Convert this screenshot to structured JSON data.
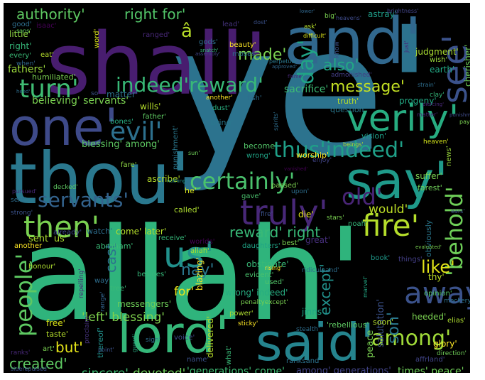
{
  "title": "",
  "background_color": "#000000",
  "frame_color": "#ffffff",
  "palette": "viridis",
  "words": [
    {
      "id": "w-ye",
      "text": "ye'",
      "color": "#2c738e"
    },
    {
      "id": "w-allah",
      "text": "allah'",
      "color": "#2fb47c"
    },
    {
      "id": "w-shall",
      "text": "shall'",
      "color": "#481d6f"
    },
    {
      "id": "w-and",
      "text": "and'",
      "color": "#31688e"
    },
    {
      "id": "w-thou",
      "text": "thou'",
      "color": "#2a788e"
    },
    {
      "id": "w-one",
      "text": "one'",
      "color": "#3e4a89"
    },
    {
      "id": "w-lord",
      "text": "lord'",
      "color": "#35b779"
    },
    {
      "id": "w-said",
      "text": "said'",
      "color": "#25848e"
    },
    {
      "id": "w-say",
      "text": "say'",
      "color": "#1f9a8a"
    },
    {
      "id": "w-verily",
      "text": "verily'",
      "color": "#27ad81"
    },
    {
      "id": "w-see",
      "text": "see'",
      "color": "#3b528b"
    },
    {
      "id": "w-truly",
      "text": "truly'",
      "color": "#482878"
    },
    {
      "id": "w-behold",
      "text": "'behold'",
      "color": "#6ece58"
    },
    {
      "id": "w-people",
      "text": "people'",
      "color": "#5ec962"
    },
    {
      "id": "w-us",
      "text": "us'",
      "color": "#21918c"
    },
    {
      "id": "w-turn",
      "text": "turn'",
      "color": "#3fbc73"
    },
    {
      "id": "w-evil",
      "text": "evil'",
      "color": "#2d708e"
    },
    {
      "id": "w-servants",
      "text": "servants'",
      "color": "#33638d"
    },
    {
      "id": "w-then",
      "text": "then'",
      "color": "#7ad151"
    },
    {
      "id": "w-fire",
      "text": "fire'",
      "color": "#b5de2b"
    },
    {
      "id": "w-away",
      "text": "away'",
      "color": "#3b528b"
    },
    {
      "id": "w-among-big",
      "text": "among'",
      "color": "#a0da39"
    },
    {
      "id": "w-old",
      "text": "old'",
      "color": "#482475"
    },
    {
      "id": "w-certainly",
      "text": "certainly'",
      "color": "#4ac16d"
    },
    {
      "id": "w-thus-indeed",
      "text": "thus'indeed'",
      "color": "#1fa088"
    },
    {
      "id": "w-day",
      "text": "day'",
      "color": "#20a486"
    },
    {
      "id": "w-indeed-reward",
      "text": "indeed'reward'",
      "color": "#38b977"
    },
    {
      "id": "w-authority",
      "text": "authority'",
      "color": "#5ec962"
    },
    {
      "id": "w-right-for",
      "text": "right for'",
      "color": "#52c569"
    },
    {
      "id": "w-a-circ",
      "text": "â",
      "color": "#b8de29"
    },
    {
      "id": "w-made",
      "text": "made'",
      "color": "#7ad151"
    },
    {
      "id": "w-also",
      "text": "also'",
      "color": "#22a785"
    },
    {
      "id": "w-message",
      "text": "message'",
      "color": "#c2df23"
    },
    {
      "id": "w-created",
      "text": "created'",
      "color": "#5ec962"
    },
    {
      "id": "w-sincere",
      "text": "sincere'",
      "color": "#3dbc74"
    },
    {
      "id": "w-devoted",
      "text": "devoted'",
      "color": "#6ccd5a"
    },
    {
      "id": "w-generations-come",
      "text": "'generations' come'",
      "color": "#3dbc74"
    },
    {
      "id": "w-among-generations",
      "text": "among' generations'",
      "color": "#414487"
    },
    {
      "id": "w-times-peace",
      "text": "times' peace'",
      "color": "#6ece58"
    },
    {
      "id": "w-but",
      "text": "but'",
      "color": "#e5e419"
    },
    {
      "id": "w-son",
      "text": "son'",
      "color": "#2a788e"
    },
    {
      "id": "w-like",
      "text": "like'",
      "color": "#e2e418"
    },
    {
      "id": "w-nay",
      "text": "nay'",
      "color": "#2a788e"
    },
    {
      "id": "w-reward-right",
      "text": "reward' right",
      "color": "#38b977"
    },
    {
      "id": "w-would",
      "text": "would'",
      "color": "#bddf26"
    },
    {
      "id": "w-cast",
      "text": "cast",
      "color": "#2c728e"
    },
    {
      "id": "w-except",
      "text": "except'",
      "color": "#21918c"
    },
    {
      "id": "w-left-blessing",
      "text": "'left' blessing'",
      "color": "#7fd34e"
    },
    {
      "id": "w-for",
      "text": "for'",
      "color": "#eae51a"
    },
    {
      "id": "w-sent-us",
      "text": "sent' us'",
      "color": "#addc30"
    },
    {
      "id": "w-blessing-among",
      "text": "blessing' among'",
      "color": "#5ec962"
    },
    {
      "id": "w-believing-servants",
      "text": "believing' servants'",
      "color": "#7ad151"
    },
    {
      "id": "w-fathers",
      "text": "fathers'",
      "color": "#9bd93c"
    },
    {
      "id": "w-little",
      "text": "little'",
      "color": "#90d743"
    },
    {
      "id": "w-right",
      "text": "right'",
      "color": "#35b779"
    },
    {
      "id": "w-every",
      "text": "every'",
      "color": "#3aba76"
    },
    {
      "id": "w-good",
      "text": "good'",
      "color": "#2e6e8e"
    },
    {
      "id": "w-isaac",
      "text": "isaac'",
      "color": "#440154"
    },
    {
      "id": "w-word",
      "text": "word'",
      "color": "#d8e219"
    },
    {
      "id": "w-ranged",
      "text": "ranged'",
      "color": "#482878"
    },
    {
      "id": "w-gods",
      "text": "gods'",
      "color": "#2e6f8e"
    },
    {
      "id": "w-beauty",
      "text": "beauty'",
      "color": "#fde725"
    },
    {
      "id": "w-moses",
      "text": "moses'",
      "color": "#2c728e"
    },
    {
      "id": "w-lead",
      "text": "lead'",
      "color": "#46337e"
    },
    {
      "id": "w-dost",
      "text": "dost'",
      "color": "#3b528b"
    },
    {
      "id": "w-ask",
      "text": "ask'",
      "color": "#b5de2b"
    },
    {
      "id": "w-big",
      "text": "big'",
      "color": "#7ad151"
    },
    {
      "id": "w-astray",
      "text": "astray'",
      "color": "#1f9e89"
    },
    {
      "id": "w-heavens",
      "text": "heavens'",
      "color": "#3e4a89"
    },
    {
      "id": "w-lower",
      "text": "lower'",
      "color": "#31688e"
    },
    {
      "id": "w-brightness",
      "text": "brightness'",
      "color": "#414487"
    },
    {
      "id": "w-cherisher",
      "text": "cherisher'",
      "color": "#6ece58"
    },
    {
      "id": "w-judgment",
      "text": "judgment'",
      "color": "#aadc32"
    },
    {
      "id": "w-admonished",
      "text": "admonished'",
      "color": "#433e85"
    },
    {
      "id": "w-earth",
      "text": "earth'",
      "color": "#22a884"
    },
    {
      "id": "w-sacrifice",
      "text": "sacrifice'",
      "color": "#3dbc74"
    },
    {
      "id": "w-truth",
      "text": "truth'",
      "color": "#b8de29"
    },
    {
      "id": "w-question",
      "text": "question'",
      "color": "#2a788e"
    },
    {
      "id": "w-progeny",
      "text": "progeny'",
      "color": "#22a884"
    },
    {
      "id": "w-worship",
      "text": "worship'",
      "color": "#fde725"
    },
    {
      "id": "w-matter",
      "text": "matter'",
      "color": "#2c728e"
    },
    {
      "id": "w-so",
      "text": "so'",
      "color": "#3b528b"
    },
    {
      "id": "w-another-1",
      "text": "another'",
      "color": "#fde725"
    },
    {
      "id": "w-fish",
      "text": "fish'",
      "color": "#2e6e8e"
    },
    {
      "id": "w-dust",
      "text": "dust'",
      "color": "#29af7f"
    },
    {
      "id": "w-wills",
      "text": "wills'",
      "color": "#b5de2b"
    },
    {
      "id": "w-father",
      "text": "father'",
      "color": "#5ec962"
    },
    {
      "id": "w-bones",
      "text": "bones'",
      "color": "#27ad81"
    },
    {
      "id": "w-bring",
      "text": "bring'",
      "color": "#2a788e"
    },
    {
      "id": "w-fare",
      "text": "fare'",
      "color": "#8fd744"
    },
    {
      "id": "w-become",
      "text": "become'",
      "color": "#52c569"
    },
    {
      "id": "w-wrong-1",
      "text": "wrong'",
      "color": "#20a486"
    },
    {
      "id": "w-passed",
      "text": "passed'",
      "color": "#7ad151"
    },
    {
      "id": "w-upon",
      "text": "upon'",
      "color": "#2e6e8e"
    },
    {
      "id": "w-gave",
      "text": "gave'",
      "color": "#4ac16d"
    },
    {
      "id": "w-enjoy",
      "text": "enjoy'",
      "color": "#414487"
    },
    {
      "id": "w-vision",
      "text": "vision'",
      "color": "#1fa088"
    },
    {
      "id": "w-heaven",
      "text": "heaven'",
      "color": "#d2e21b"
    },
    {
      "id": "w-news",
      "text": "news'",
      "color": "#9bd93c"
    },
    {
      "id": "w-suffer",
      "text": "suffer'",
      "color": "#7ad151"
    },
    {
      "id": "w-farest",
      "text": "farest'",
      "color": "#6ece58"
    },
    {
      "id": "w-ascribe",
      "text": "ascribe'",
      "color": "#b5de2b"
    },
    {
      "id": "w-he",
      "text": "he'",
      "color": "#d8e219"
    },
    {
      "id": "w-called",
      "text": "called'",
      "color": "#addc30"
    },
    {
      "id": "w-die",
      "text": "die'",
      "color": "#e2e418"
    },
    {
      "id": "w-fire-small",
      "text": "fire'",
      "color": "#3b528b"
    },
    {
      "id": "w-stars",
      "text": "stars'",
      "color": "#7ad151"
    },
    {
      "id": "w-noah",
      "text": "noah'",
      "color": "#35b779"
    },
    {
      "id": "w-come-later",
      "text": "come' later'",
      "color": "#b5de2b"
    },
    {
      "id": "w-watch",
      "text": "watch'",
      "color": "#2e6e8e"
    },
    {
      "id": "w-already",
      "text": "already'",
      "color": "#3e4a89"
    },
    {
      "id": "w-receive",
      "text": "receive'",
      "color": "#35b779"
    },
    {
      "id": "w-abraham",
      "text": "abraham'",
      "color": "#3aba76"
    },
    {
      "id": "w-worlds",
      "text": "worlds'",
      "color": "#440154"
    },
    {
      "id": "w-daughters",
      "text": "daughters'",
      "color": "#20a486"
    },
    {
      "id": "w-best",
      "text": "best'",
      "color": "#7ad151"
    },
    {
      "id": "w-great",
      "text": "great'",
      "color": "#472f7d"
    },
    {
      "id": "w-book",
      "text": "book'",
      "color": "#1f9a8a"
    },
    {
      "id": "w-things",
      "text": "things'",
      "color": "#433e85"
    },
    {
      "id": "w-obviously",
      "text": "obviously",
      "color": "#2a788e"
    },
    {
      "id": "w-allah-small",
      "text": "allah'",
      "color": "#a5db36"
    },
    {
      "id": "w-obstinate",
      "text": "obstinate'",
      "color": "#38b977"
    },
    {
      "id": "w-thy",
      "text": "thy'",
      "color": "#bddf26"
    },
    {
      "id": "w-evident",
      "text": "evident'",
      "color": "#4ac16d"
    },
    {
      "id": "w-rising",
      "text": "rising'",
      "color": "#fde725"
    },
    {
      "id": "w-used",
      "text": "used'",
      "color": "#52c569"
    },
    {
      "id": "w-ridiculeand",
      "text": "ridiculeand'",
      "color": "#2e6e8e"
    },
    {
      "id": "w-wrong-indeed",
      "text": "wrong' indeed'",
      "color": "#27ad81"
    },
    {
      "id": "w-penaltyexcept",
      "text": "penaltyexcept'",
      "color": "#7ad151"
    },
    {
      "id": "w-power",
      "text": "power'",
      "color": "#addc30"
    },
    {
      "id": "w-jinns",
      "text": "jinns'",
      "color": "#20a486"
    },
    {
      "id": "w-opinion",
      "text": "opinion'",
      "color": "#52c569"
    },
    {
      "id": "w-mockeryand",
      "text": "mockeryand'",
      "color": "#2c728e"
    },
    {
      "id": "w-sticky",
      "text": "sticky'",
      "color": "#fde725"
    },
    {
      "id": "w-salutation",
      "text": "salutation'",
      "color": "#3b528b"
    },
    {
      "id": "w-peace",
      "text": "peace",
      "color": "#7ad151"
    },
    {
      "id": "w-soon",
      "text": "soon'",
      "color": "#b5de2b"
    },
    {
      "id": "w-rebellious",
      "text": "'rebellious'",
      "color": "#5ec962"
    },
    {
      "id": "w-heeded",
      "text": "heeded'",
      "color": "#7ad151"
    },
    {
      "id": "w-elias",
      "text": "elias'",
      "color": "#addc30"
    },
    {
      "id": "w-glory",
      "text": "glory'",
      "color": "#fde725"
    },
    {
      "id": "w-direction",
      "text": "direction'",
      "color": "#6ece58"
    },
    {
      "id": "w-delivered",
      "text": "delivered'",
      "color": "#b8de29"
    },
    {
      "id": "w-stealth",
      "text": "stealth'",
      "color": "#2e6e8e"
    },
    {
      "id": "w-ranksand",
      "text": "ranksand'",
      "color": "#2c728e"
    },
    {
      "id": "w-what",
      "text": "what'",
      "color": "#38b977"
    },
    {
      "id": "w-name",
      "text": "name'",
      "color": "#3b528b"
    },
    {
      "id": "w-voice",
      "text": "voice'",
      "color": "#3e4a89"
    },
    {
      "id": "w-sign",
      "text": "sign'",
      "color": "#2e6e8e"
    },
    {
      "id": "w-guard",
      "text": "guard'",
      "color": "#27ad81"
    },
    {
      "id": "w-thereof",
      "text": "thereof'",
      "color": "#21918c"
    },
    {
      "id": "w-proclaim",
      "text": "proclaim'",
      "color": "#46337e"
    },
    {
      "id": "w-point",
      "text": "point'",
      "color": "#3b528b"
    },
    {
      "id": "w-art",
      "text": "art'",
      "color": "#7ad151"
    },
    {
      "id": "w-taste",
      "text": "taste'",
      "color": "#b5de2b"
    },
    {
      "id": "w-free",
      "text": "free'",
      "color": "#d8e219"
    },
    {
      "id": "w-ranks",
      "text": "ranks'",
      "color": "#482878"
    },
    {
      "id": "w-siderepulsed",
      "text": "siderepulsed'",
      "color": "#3b528b"
    },
    {
      "id": "w-messengers",
      "text": "messengers'",
      "color": "#6ece58"
    },
    {
      "id": "w-tree",
      "text": "tree'",
      "color": "#38b977"
    },
    {
      "id": "w-way",
      "text": "way'",
      "color": "#2e6e8e"
    },
    {
      "id": "w-besides",
      "text": "besides'",
      "color": "#35b779"
    },
    {
      "id": "w-blazing",
      "text": "blazing'",
      "color": "#fde725"
    },
    {
      "id": "w-range",
      "text": "range'",
      "color": "#33638d"
    },
    {
      "id": "w-repelling",
      "text": "repelling'",
      "color": "#482475"
    },
    {
      "id": "w-honour",
      "text": "honour'",
      "color": "#addc30"
    },
    {
      "id": "w-another-2",
      "text": "another",
      "color": "#fde725"
    },
    {
      "id": "w-sent",
      "text": "sent'",
      "color": "#2e6e8e"
    },
    {
      "id": "w-strong",
      "text": "strong'",
      "color": "#3b528b"
    },
    {
      "id": "w-pursued",
      "text": "pursued'",
      "color": "#482878"
    },
    {
      "id": "w-decked",
      "text": "decked'",
      "color": "#5ec962"
    },
    {
      "id": "w-heed",
      "text": "heed'",
      "color": "#2e6e8e"
    },
    {
      "id": "w-humiliated",
      "text": "humiliated'",
      "color": "#7ad151"
    },
    {
      "id": "w-when",
      "text": "when'",
      "color": "#31688e"
    },
    {
      "id": "w-eat",
      "text": "eat'",
      "color": "#b5de2b"
    },
    {
      "id": "w-sons",
      "text": "sons'",
      "color": "#5ec962"
    },
    {
      "id": "w-assembly",
      "text": "assembly'",
      "color": "#414487"
    },
    {
      "id": "w-snatch",
      "text": "snatch'",
      "color": "#35b779"
    },
    {
      "id": "w-perpetual",
      "text": "perpetual'",
      "color": "#2a788e"
    },
    {
      "id": "w-difficult",
      "text": "difficult'",
      "color": "#d8e219"
    },
    {
      "id": "w-know",
      "text": "know'",
      "color": "#3b528b"
    },
    {
      "id": "w-just",
      "text": "just'",
      "color": "#482878"
    },
    {
      "id": "w-strain",
      "text": "strain'",
      "color": "#2e6e8e"
    },
    {
      "id": "w-clay",
      "text": "clay'",
      "color": "#35b779"
    },
    {
      "id": "w-pay",
      "text": "pay'",
      "color": "#7ad151"
    },
    {
      "id": "w-beings",
      "text": "beings'",
      "color": "#addc30"
    },
    {
      "id": "w-spirits",
      "text": "spirits'",
      "color": "#2e6e8e"
    },
    {
      "id": "w-punishment",
      "text": "punishment'",
      "color": "#2a788e"
    },
    {
      "id": "w-sun",
      "text": "sun'",
      "color": "#6ece58"
    },
    {
      "id": "w-nothing",
      "text": "nothing'",
      "color": "#21918c"
    },
    {
      "id": "w-evaluated",
      "text": "evaluated'",
      "color": "#7ad151"
    },
    {
      "id": "w-ears",
      "text": "ears'",
      "color": "#3b528b"
    },
    {
      "id": "w-marvel",
      "text": "marvel'",
      "color": "#22a884"
    },
    {
      "id": "w-piercing",
      "text": "piercing'",
      "color": "#482878"
    },
    {
      "id": "w-wish",
      "text": "wish'",
      "color": "#9bd93c"
    },
    {
      "id": "w-flame",
      "text": "flame'",
      "color": "#482878"
    },
    {
      "id": "w-punishment-b",
      "text": "punishment'",
      "color": "#3e4a89"
    },
    {
      "id": "w-vanished",
      "text": "vanished'",
      "color": "#440154"
    },
    {
      "id": "w-matter-2",
      "text": "matter'",
      "color": "#482475"
    },
    {
      "id": "w-approved",
      "text": "approved'",
      "color": "#31688e"
    },
    {
      "id": "w-affrland",
      "text": "affrland'",
      "color": "#414487"
    }
  ]
}
